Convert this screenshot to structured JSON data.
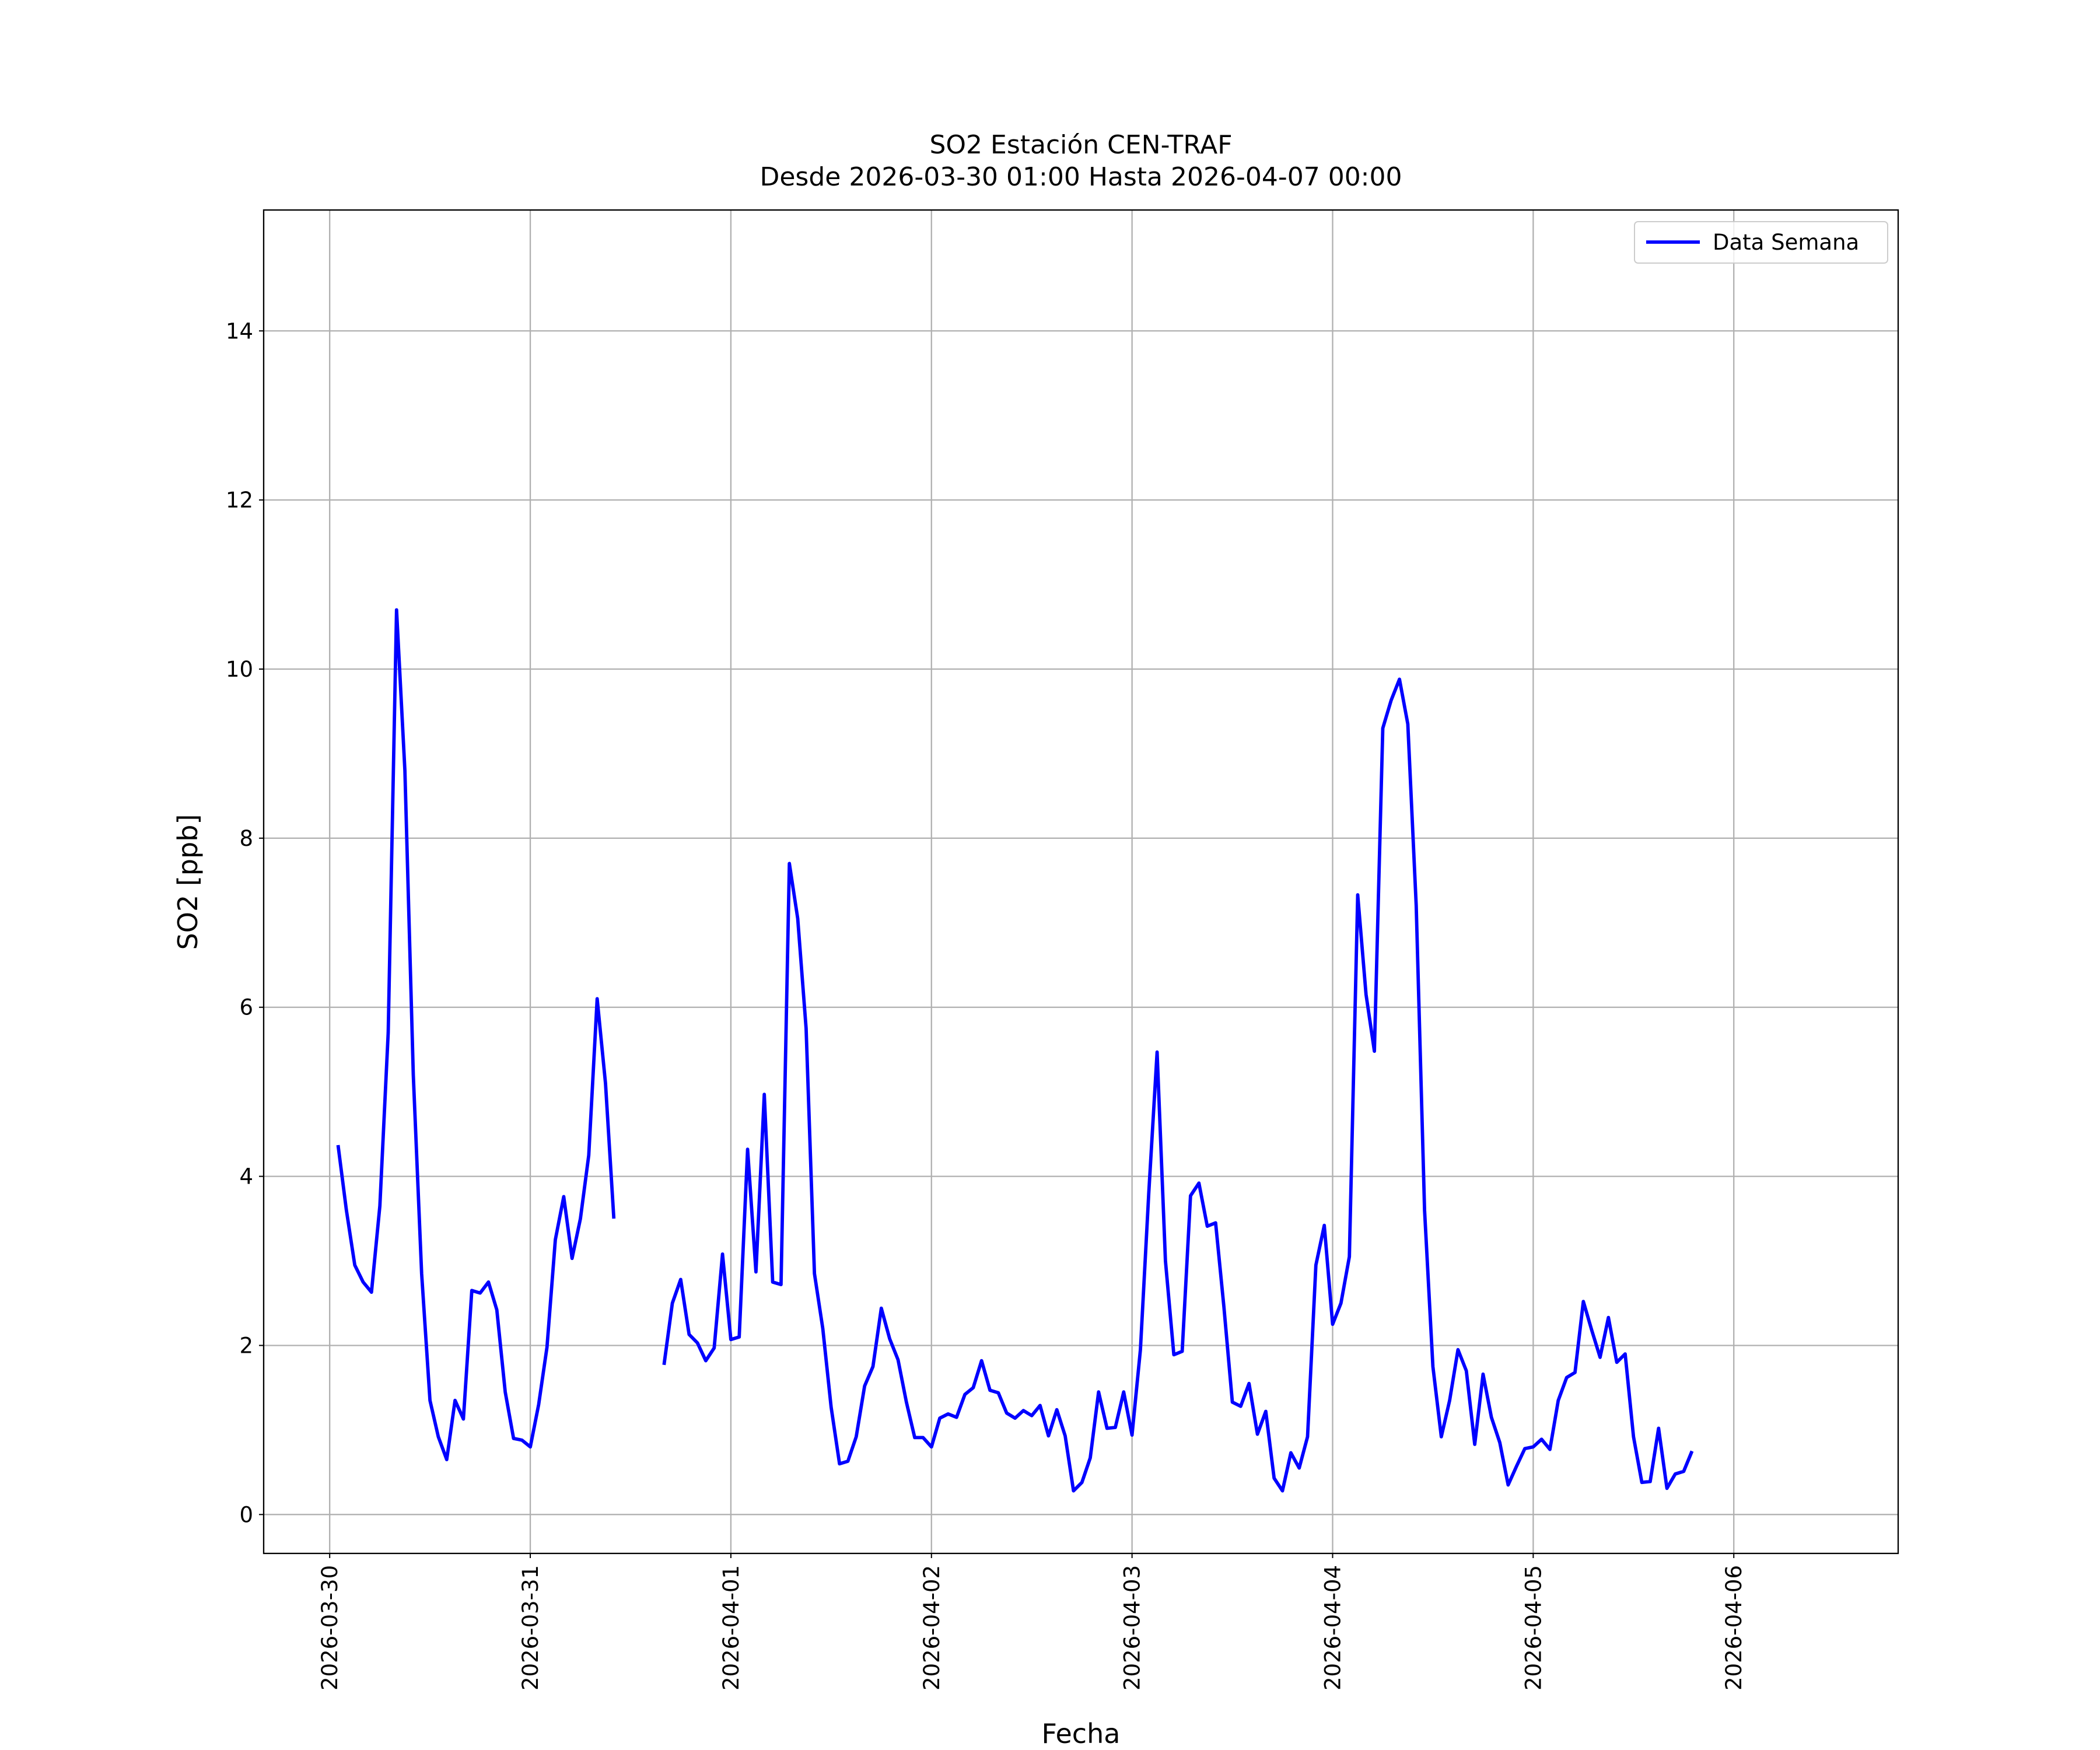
{
  "chart_data": {
    "type": "line",
    "title": "SO2 Estación CEN-TRAF",
    "subtitle": "Desde 2026-03-30 01:00 Hasta 2026-04-07 00:00",
    "xlabel": "Fecha",
    "ylabel": "SO2 [ppb]",
    "legend": "upper right",
    "grid": true,
    "xlim": [
      "2026-03-29 16:06",
      "2026-04-06 19:40"
    ],
    "xticks": [
      "2026-03-30",
      "2026-03-31",
      "2026-04-01",
      "2026-04-02",
      "2026-04-03",
      "2026-04-04",
      "2026-04-05",
      "2026-04-06"
    ],
    "ylim": [
      -0.46,
      15.43
    ],
    "yticks": [
      0,
      2,
      4,
      6,
      8,
      10,
      12,
      14
    ],
    "x": [
      "2026-03-30 01:00",
      "2026-03-30 02:00",
      "2026-03-30 03:00",
      "2026-03-30 04:00",
      "2026-03-30 05:00",
      "2026-03-30 06:00",
      "2026-03-30 07:00",
      "2026-03-30 08:00",
      "2026-03-30 09:00",
      "2026-03-30 10:00",
      "2026-03-30 11:00",
      "2026-03-30 12:00",
      "2026-03-30 13:00",
      "2026-03-30 14:00",
      "2026-03-30 15:00",
      "2026-03-30 16:00",
      "2026-03-30 17:00",
      "2026-03-30 18:00",
      "2026-03-30 19:00",
      "2026-03-30 20:00",
      "2026-03-30 21:00",
      "2026-03-30 22:00",
      "2026-03-30 23:00",
      "2026-03-31 00:00",
      "2026-03-31 01:00",
      "2026-03-31 02:00",
      "2026-03-31 03:00",
      "2026-03-31 04:00",
      "2026-03-31 05:00",
      "2026-03-31 06:00",
      "2026-03-31 07:00",
      "2026-03-31 08:00",
      "2026-03-31 09:00",
      "2026-03-31 10:00",
      "2026-03-31 11:00",
      "2026-03-31 12:00",
      "2026-03-31 13:00",
      "2026-03-31 14:00",
      "2026-03-31 15:00",
      "2026-03-31 16:00",
      "2026-03-31 17:00",
      "2026-03-31 18:00",
      "2026-03-31 19:00",
      "2026-03-31 20:00",
      "2026-03-31 21:00",
      "2026-03-31 22:00",
      "2026-03-31 23:00",
      "2026-04-01 00:00",
      "2026-04-01 01:00",
      "2026-04-01 02:00",
      "2026-04-01 03:00",
      "2026-04-01 04:00",
      "2026-04-01 05:00",
      "2026-04-01 06:00",
      "2026-04-01 07:00",
      "2026-04-01 08:00",
      "2026-04-01 09:00",
      "2026-04-01 10:00",
      "2026-04-01 11:00",
      "2026-04-01 12:00",
      "2026-04-01 13:00",
      "2026-04-01 14:00",
      "2026-04-01 15:00",
      "2026-04-01 16:00",
      "2026-04-01 17:00",
      "2026-04-01 18:00",
      "2026-04-01 19:00",
      "2026-04-01 20:00",
      "2026-04-01 21:00",
      "2026-04-01 22:00",
      "2026-04-01 23:00",
      "2026-04-02 00:00",
      "2026-04-02 01:00",
      "2026-04-02 02:00",
      "2026-04-02 03:00",
      "2026-04-02 04:00",
      "2026-04-02 05:00",
      "2026-04-02 06:00",
      "2026-04-02 07:00",
      "2026-04-02 08:00",
      "2026-04-02 09:00",
      "2026-04-02 10:00",
      "2026-04-02 11:00",
      "2026-04-02 12:00",
      "2026-04-02 13:00",
      "2026-04-02 14:00",
      "2026-04-02 15:00",
      "2026-04-02 16:00",
      "2026-04-02 17:00",
      "2026-04-02 18:00",
      "2026-04-02 19:00",
      "2026-04-02 20:00",
      "2026-04-02 21:00",
      "2026-04-02 22:00",
      "2026-04-02 23:00",
      "2026-04-03 00:00",
      "2026-04-03 01:00",
      "2026-04-03 02:00",
      "2026-04-03 03:00",
      "2026-04-03 04:00",
      "2026-04-03 05:00",
      "2026-04-03 06:00",
      "2026-04-03 07:00",
      "2026-04-03 08:00",
      "2026-04-03 09:00",
      "2026-04-03 10:00",
      "2026-04-03 11:00",
      "2026-04-03 12:00",
      "2026-04-03 13:00",
      "2026-04-03 14:00",
      "2026-04-03 15:00",
      "2026-04-03 16:00",
      "2026-04-03 17:00",
      "2026-04-03 18:00",
      "2026-04-03 19:00",
      "2026-04-03 20:00",
      "2026-04-03 21:00",
      "2026-04-03 22:00",
      "2026-04-03 23:00",
      "2026-04-04 00:00",
      "2026-04-04 01:00",
      "2026-04-04 02:00",
      "2026-04-04 03:00",
      "2026-04-04 04:00",
      "2026-04-04 05:00",
      "2026-04-04 06:00",
      "2026-04-04 07:00",
      "2026-04-04 08:00",
      "2026-04-04 09:00",
      "2026-04-04 10:00",
      "2026-04-04 11:00",
      "2026-04-04 12:00",
      "2026-04-04 13:00",
      "2026-04-04 14:00",
      "2026-04-04 15:00",
      "2026-04-04 16:00",
      "2026-04-04 17:00",
      "2026-04-04 18:00",
      "2026-04-04 19:00",
      "2026-04-04 20:00",
      "2026-04-04 21:00",
      "2026-04-04 22:00",
      "2026-04-04 23:00",
      "2026-04-05 00:00",
      "2026-04-05 01:00",
      "2026-04-05 02:00",
      "2026-04-05 03:00",
      "2026-04-05 04:00",
      "2026-04-05 05:00",
      "2026-04-05 06:00",
      "2026-04-05 07:00",
      "2026-04-05 08:00",
      "2026-04-05 09:00",
      "2026-04-05 10:00",
      "2026-04-05 11:00",
      "2026-04-05 12:00",
      "2026-04-05 13:00",
      "2026-04-05 14:00",
      "2026-04-05 15:00",
      "2026-04-05 16:00",
      "2026-04-05 17:00",
      "2026-04-05 18:00",
      "2026-04-05 19:00"
    ],
    "series": [
      {
        "name": "Data Semana",
        "color": "#0000ff",
        "values": [
          4.37,
          3.6,
          2.95,
          2.75,
          2.63,
          3.65,
          5.7,
          10.7,
          8.8,
          5.2,
          2.85,
          1.35,
          0.92,
          0.65,
          1.35,
          1.13,
          2.65,
          2.62,
          2.75,
          2.42,
          1.45,
          0.9,
          0.88,
          0.8,
          1.3,
          1.98,
          3.25,
          3.76,
          3.03,
          3.5,
          4.25,
          6.1,
          5.1,
          3.5,
          null,
          null,
          null,
          null,
          null,
          1.77,
          2.5,
          2.78,
          2.13,
          2.03,
          1.82,
          1.97,
          3.08,
          2.07,
          2.1,
          4.32,
          2.87,
          4.97,
          2.75,
          2.72,
          7.7,
          7.05,
          5.75,
          2.85,
          2.2,
          1.27,
          0.6,
          0.63,
          0.92,
          1.52,
          1.75,
          2.44,
          2.08,
          1.83,
          1.33,
          0.91,
          0.91,
          0.8,
          1.14,
          1.19,
          1.15,
          1.42,
          1.5,
          1.82,
          1.47,
          1.44,
          1.2,
          1.14,
          1.23,
          1.17,
          1.29,
          0.93,
          1.24,
          0.93,
          0.28,
          0.38,
          0.67,
          1.45,
          1.02,
          1.03,
          1.45,
          0.94,
          1.95,
          3.8,
          5.47,
          3.0,
          1.89,
          1.93,
          3.77,
          3.92,
          3.41,
          3.45,
          2.45,
          1.33,
          1.28,
          1.55,
          0.95,
          1.22,
          0.43,
          0.28,
          0.73,
          0.55,
          0.92,
          2.95,
          3.42,
          2.25,
          2.5,
          3.05,
          7.33,
          6.15,
          5.48,
          9.3,
          9.63,
          9.88,
          9.35,
          7.2,
          3.6,
          1.75,
          0.92,
          1.35,
          1.95,
          1.7,
          0.83,
          1.66,
          1.15,
          0.85,
          0.35,
          0.57,
          0.78,
          0.8,
          0.89,
          0.77,
          1.35,
          1.62,
          1.68,
          2.52,
          2.18,
          1.86,
          2.33,
          1.8,
          1.9,
          0.92,
          0.38,
          0.39,
          1.02,
          0.31,
          0.48,
          0.51,
          0.75
        ]
      }
    ]
  }
}
